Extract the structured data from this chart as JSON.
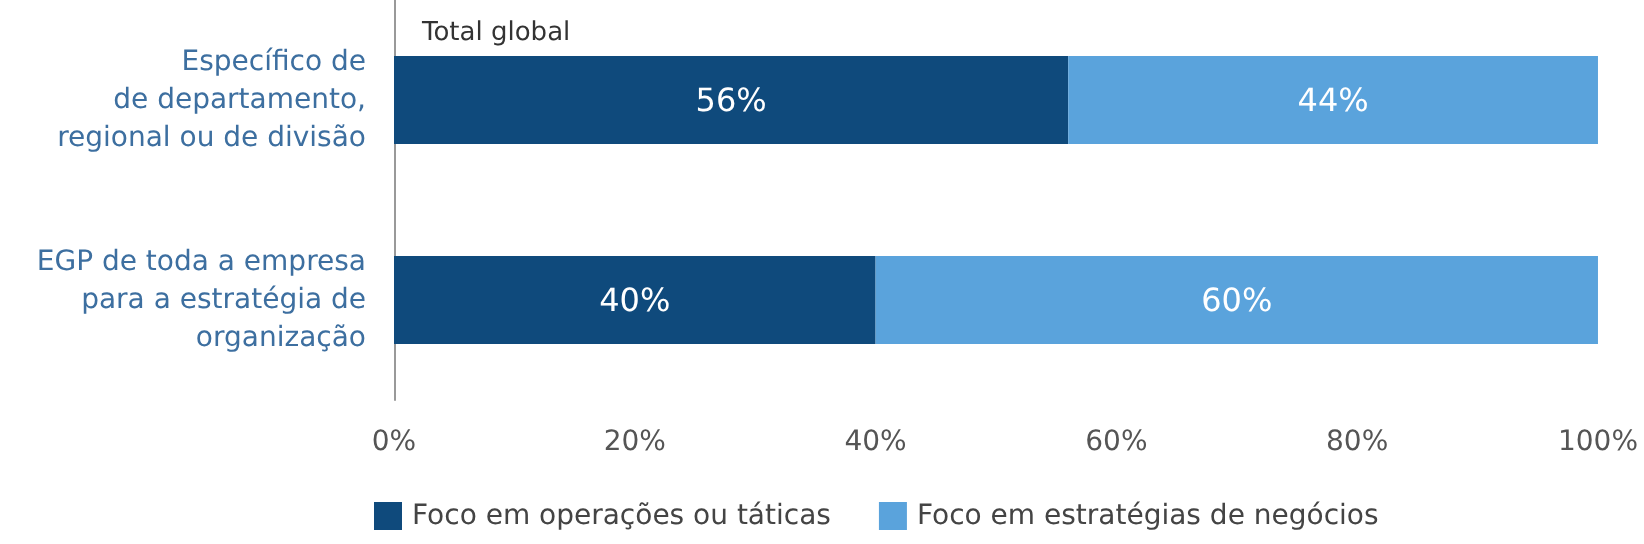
{
  "chart_data": {
    "type": "bar",
    "orientation": "horizontal",
    "stacked": true,
    "title": "Total global",
    "categories": [
      "Específico de\nde departamento,\nregional ou de divisão",
      "EGP de toda a empresa\npara a estratégia de\norganização"
    ],
    "series": [
      {
        "name": "Foco em operações ou táticas",
        "color": "#0f4a7c",
        "values": [
          56,
          40
        ],
        "value_labels": [
          "56%",
          "40%"
        ]
      },
      {
        "name": "Foco em estratégias de negócios",
        "color": "#5aa3dc",
        "values": [
          44,
          60
        ],
        "value_labels": [
          "44%",
          "60%"
        ]
      }
    ],
    "xlim": [
      0,
      100
    ],
    "xticks": [
      {
        "value": 0,
        "label": "0%"
      },
      {
        "value": 20,
        "label": "20%"
      },
      {
        "value": 40,
        "label": "40%"
      },
      {
        "value": 60,
        "label": "60%"
      },
      {
        "value": 80,
        "label": "80%"
      },
      {
        "value": 100,
        "label": "100%"
      }
    ],
    "legend": "bottom",
    "grid": false
  }
}
